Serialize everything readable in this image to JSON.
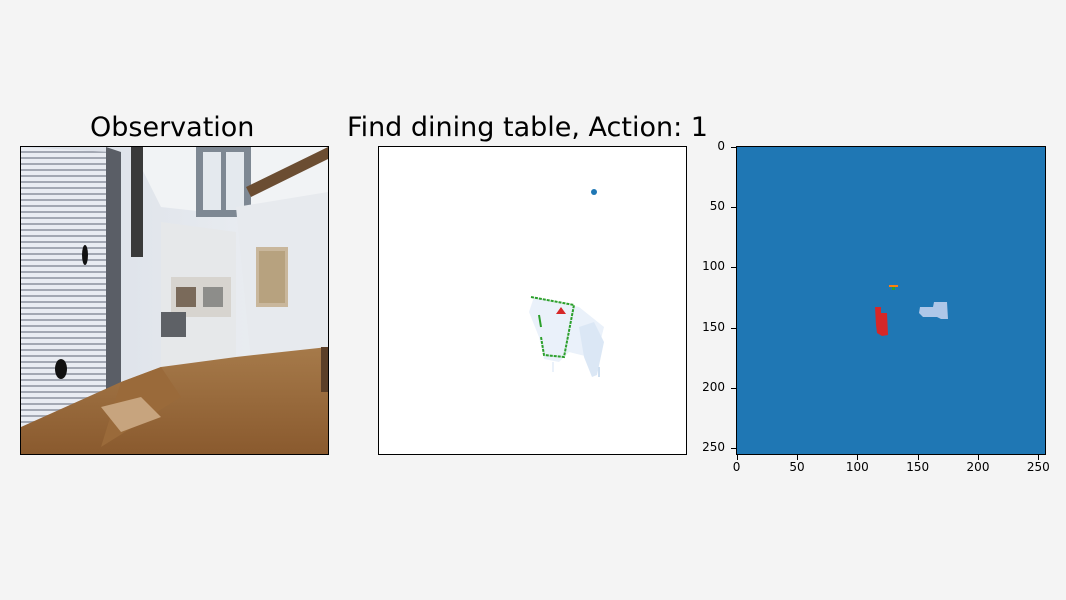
{
  "observation": {
    "title": "Observation"
  },
  "map": {
    "title": "Find dining table, Action: 1"
  },
  "semantic": {
    "y_ticks": [
      "0",
      "50",
      "100",
      "150",
      "200",
      "250"
    ],
    "x_ticks": [
      "0",
      "50",
      "100",
      "150",
      "200",
      "250"
    ]
  },
  "colors": {
    "background": "#f4f4f4",
    "semantic_bg": "#1f77b4",
    "agent": "#d62728",
    "object_light": "#aec7e8",
    "goal_marker": "#1f77b4",
    "wall_green": "#2ca02c",
    "object_orange": "#ff7f0e"
  }
}
